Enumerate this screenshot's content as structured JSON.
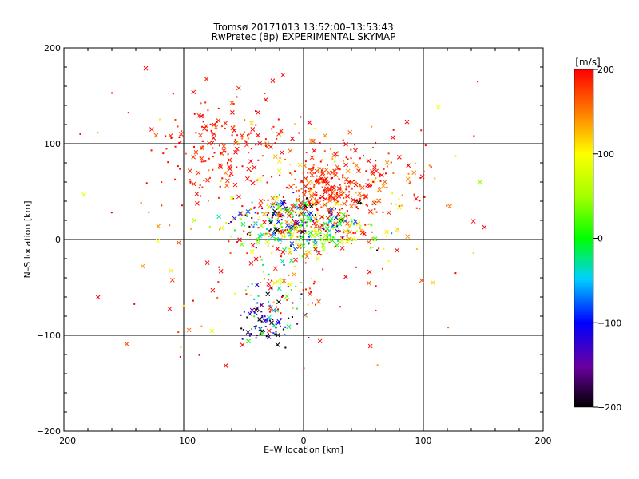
{
  "chart_data": {
    "type": "scatter",
    "title": "Tromsø 20171013 13:52:00–13:53:43",
    "subtitle": "RwPretec (8p) EXPERIMENTAL SKYMAP",
    "xlabel": "E–W location [km]",
    "ylabel": "N–S location [km]",
    "xlim": [
      -200,
      200
    ],
    "ylim": [
      -200,
      200
    ],
    "xticks": [
      -200,
      -100,
      0,
      100,
      200
    ],
    "yticks": [
      -200,
      -100,
      0,
      100,
      200
    ],
    "grid": true,
    "colorbar": {
      "label": "[m/s]",
      "range": [
        -200,
        200
      ],
      "ticks": [
        200,
        100,
        0,
        -100,
        -200
      ],
      "colormap": "rainbow-black-to-red"
    },
    "markers": [
      "x",
      "dot"
    ],
    "clusters": [
      {
        "x": 20,
        "y": 55,
        "sx": 22,
        "sy": 18,
        "n": 260,
        "vmean": 185,
        "vsd": 30
      },
      {
        "x": -70,
        "y": 100,
        "sx": 28,
        "sy": 25,
        "n": 170,
        "vmean": 195,
        "vsd": 20
      },
      {
        "x": -5,
        "y": 20,
        "sx": 30,
        "sy": 12,
        "n": 260,
        "vmean": 0,
        "vsd": 140
      },
      {
        "x": 10,
        "y": 5,
        "sx": 30,
        "sy": 10,
        "n": 140,
        "vmean": 60,
        "vsd": 60
      },
      {
        "x": -30,
        "y": -85,
        "sx": 12,
        "sy": 12,
        "n": 80,
        "vmean": -150,
        "vsd": 80
      },
      {
        "x": -20,
        "y": -40,
        "sx": 15,
        "sy": 20,
        "n": 70,
        "vmean": 100,
        "vsd": 130
      },
      {
        "x": 60,
        "y": 60,
        "sx": 30,
        "sy": 25,
        "n": 60,
        "vmean": 170,
        "vsd": 40
      },
      {
        "x": 0,
        "y": 20,
        "sx": 80,
        "sy": 70,
        "n": 200,
        "vmean": 180,
        "vsd": 60
      }
    ]
  }
}
